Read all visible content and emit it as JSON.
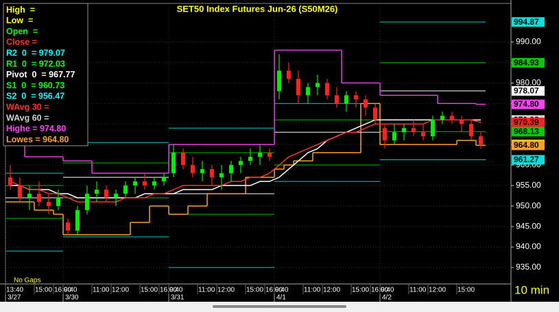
{
  "chart_data": {
    "type": "candlestick",
    "title": "SET50 Index Futures Jun-26 (S50M26)",
    "interval": "10 min",
    "note": "No Gaps",
    "ylim": [
      931,
      999.4
    ],
    "yticks": [
      {
        "value": 935,
        "label": "935.00"
      },
      {
        "value": 940,
        "label": "940.00"
      },
      {
        "value": 945,
        "label": "945.00"
      },
      {
        "value": 950,
        "label": "950.00"
      },
      {
        "value": 955,
        "label": "955.00"
      },
      {
        "value": 960,
        "label": "960.00"
      },
      {
        "value": 965,
        "label": "965.00"
      },
      {
        "value": 970,
        "label": "970.00"
      },
      {
        "value": 975,
        "label": "975.00"
      },
      {
        "value": 980,
        "label": "980.00"
      },
      {
        "value": 985,
        "label": "985.00"
      },
      {
        "value": 990,
        "label": "990.00"
      }
    ],
    "up_color": "#00ee00",
    "down_color": "#ff2020",
    "line_colors": {
      "wavg30": "#ff3030",
      "wavg60": "#ffffff",
      "highs": "#e040e0",
      "lows": "#ffa020"
    },
    "pivot_colors": [
      "#00d0d0",
      "#00c000",
      "#ffffff",
      "#00c000",
      "#00d0d0"
    ],
    "legend": [
      {
        "text": "High  =",
        "color": "#ffff00"
      },
      {
        "text": "Low  =",
        "color": "#ffff00"
      },
      {
        "text": "Open  =",
        "color": "#00ff00"
      },
      {
        "text": "Close =",
        "color": "#ff3030"
      },
      {
        "text": "R2  0  = 979.07",
        "color": "#00ffff"
      },
      {
        "text": "R1  0  = 972.03",
        "color": "#00ff00"
      },
      {
        "text": "Pivot  0  = 967.77",
        "color": "#ffffff"
      },
      {
        "text": "S1  0  = 960.73",
        "color": "#00ff00"
      },
      {
        "text": "S2  0  = 956.47",
        "color": "#00ffff"
      },
      {
        "text": "WAvg 30 =",
        "color": "#ff3030"
      },
      {
        "text": "WAvg 60 =",
        "color": "#d0d0d0"
      },
      {
        "text": "Highe = 974.80",
        "color": "#ff40ff"
      },
      {
        "text": "Lowes = 964.80",
        "color": "#ffa020"
      }
    ],
    "price_flags": [
      {
        "value": 994.87,
        "label": "994.87",
        "color": "#00e0e0"
      },
      {
        "value": 984.93,
        "label": "984.93",
        "color": "#00cc00"
      },
      {
        "value": 978.07,
        "label": "978.07",
        "color": "#ffffff"
      },
      {
        "value": 974.8,
        "label": "974.80",
        "color": "#ff40ff"
      },
      {
        "value": 970.98,
        "label": "970.98",
        "color": "#d8d8d8"
      },
      {
        "value": 970.39,
        "label": "970.39",
        "color": "#ff2020"
      },
      {
        "value": 968.13,
        "label": "968.13",
        "color": "#00cc00"
      },
      {
        "value": 965.0,
        "label": "965.00",
        "color": "#ffff00"
      },
      {
        "value": 964.8,
        "label": "964.80",
        "color": "#ffa020"
      },
      {
        "value": 961.27,
        "label": "961.27",
        "color": "#00e0e0"
      }
    ],
    "days": [
      {
        "date": "3/27",
        "times": [
          "13:40",
          null,
          null,
          "15:00",
          null,
          "16:00"
        ],
        "candles": [
          [
            957,
            960,
            954,
            955
          ],
          [
            955,
            957,
            951,
            952
          ],
          [
            952,
            955,
            949,
            953
          ],
          [
            953,
            956,
            950,
            951
          ],
          [
            951,
            953,
            948,
            950
          ],
          [
            950,
            954,
            949,
            952
          ]
        ],
        "wavg30": [
          956,
          955,
          954,
          954,
          953,
          953
        ],
        "wavg60": [
          955,
          955,
          954,
          954,
          954,
          953
        ],
        "highs": [
          966,
          966,
          962,
          962,
          962,
          962
        ],
        "lows": [
          951,
          951,
          951,
          949,
          949,
          948
        ],
        "pivots": [
          958,
          955,
          952,
          947,
          939
        ]
      },
      {
        "date": "3/30",
        "times": [
          "9:40",
          null,
          null,
          "11:00",
          null,
          "12:00",
          null,
          null,
          "15:00",
          null,
          "16:00"
        ],
        "candles": [
          [
            946,
            947,
            943,
            944
          ],
          [
            944,
            950,
            943,
            949
          ],
          [
            949,
            955,
            948,
            953
          ],
          [
            953,
            956,
            951,
            954
          ],
          [
            954,
            955,
            951,
            952
          ],
          [
            952,
            954,
            950,
            953
          ],
          [
            953,
            956,
            952,
            955
          ],
          [
            955,
            957,
            953,
            956
          ],
          [
            956,
            958,
            954,
            955
          ],
          [
            955,
            957,
            954,
            956
          ],
          [
            956,
            958,
            955,
            957
          ]
        ],
        "wavg30": [
          952,
          951,
          951,
          951,
          951,
          951,
          952,
          952,
          952,
          953,
          953
        ],
        "wavg60": [
          953,
          952,
          952,
          952,
          952,
          952,
          952,
          952,
          953,
          953,
          953
        ],
        "highs": [
          961,
          961,
          961,
          958,
          958,
          958,
          958,
          958,
          958,
          958,
          958
        ],
        "lows": [
          943,
          943,
          943,
          943,
          943,
          943,
          943,
          946,
          946,
          950,
          950
        ],
        "pivots": [
          965.5,
          960.5,
          957,
          952,
          942.5
        ]
      },
      {
        "date": "3/31",
        "times": [
          "9:40",
          null,
          null,
          "11:00",
          null,
          "12:00",
          null,
          null,
          "15:00",
          null,
          "16:00"
        ],
        "candles": [
          [
            958,
            965,
            957,
            963
          ],
          [
            963,
            964,
            959,
            960
          ],
          [
            960,
            962,
            957,
            958
          ],
          [
            958,
            961,
            956,
            959
          ],
          [
            959,
            960,
            955,
            957
          ],
          [
            957,
            960,
            954,
            958
          ],
          [
            958,
            961,
            956,
            960
          ],
          [
            960,
            962,
            958,
            961
          ],
          [
            961,
            964,
            960,
            962
          ],
          [
            962,
            965,
            960,
            963
          ],
          [
            963,
            964,
            961,
            962
          ]
        ],
        "wavg30": [
          954,
          955,
          955,
          955,
          955,
          955,
          956,
          956,
          957,
          957,
          958
        ],
        "wavg60": [
          953,
          954,
          954,
          954,
          954,
          955,
          955,
          955,
          955,
          956,
          956
        ],
        "highs": [
          965,
          965,
          965,
          965,
          965,
          965,
          965,
          965,
          965,
          965,
          965
        ],
        "lows": [
          948,
          948,
          950,
          950,
          953,
          953,
          953,
          953,
          957,
          957,
          957
        ],
        "pivots": [
          969,
          963,
          953,
          948,
          935
        ]
      },
      {
        "date": "4/1",
        "times": [
          "9:40",
          null,
          null,
          "11:00",
          null,
          "12:00",
          null,
          null,
          "15:00",
          null,
          "16:00"
        ],
        "candles": [
          [
            978,
            987,
            976,
            983
          ],
          [
            983,
            985,
            980,
            981
          ],
          [
            981,
            983,
            975,
            977
          ],
          [
            977,
            980,
            975,
            979
          ],
          [
            979,
            982,
            977,
            980
          ],
          [
            980,
            981,
            976,
            977
          ],
          [
            977,
            979,
            974,
            975
          ],
          [
            975,
            978,
            973,
            977
          ],
          [
            977,
            978,
            974,
            976
          ],
          [
            976,
            977,
            972,
            974
          ],
          [
            974,
            975,
            970,
            971
          ]
        ],
        "wavg30": [
          960,
          962,
          963,
          964,
          965,
          966,
          967,
          968,
          968,
          969,
          970
        ],
        "wavg60": [
          957,
          959,
          961,
          963,
          964,
          966,
          967,
          968,
          969,
          970,
          971
        ],
        "highs": [
          988,
          988,
          988,
          988,
          988,
          988,
          988,
          980,
          980,
          980,
          980
        ],
        "lows": [
          959,
          960,
          961,
          961,
          963,
          963,
          963,
          963,
          963,
          975,
          975
        ],
        "pivots": [
          975,
          971,
          968,
          960,
          956
        ]
      },
      {
        "date": "4/2",
        "times": [
          "9:40",
          null,
          null,
          "11:00",
          null,
          "12:00",
          null,
          null,
          "15:00",
          null,
          null
        ],
        "candles": [
          [
            969,
            970,
            964,
            966
          ],
          [
            966,
            970,
            965,
            968
          ],
          [
            968,
            970,
            966,
            969
          ],
          [
            969,
            971,
            967,
            968
          ],
          [
            968,
            970,
            966,
            967
          ],
          [
            967,
            972,
            966,
            971
          ],
          [
            971,
            973,
            970,
            972
          ],
          [
            972,
            973,
            970,
            971
          ],
          [
            971,
            972,
            968,
            970
          ],
          [
            970,
            971,
            966,
            967
          ],
          [
            967,
            968,
            964,
            965
          ]
        ],
        "wavg30": [
          970,
          970,
          970,
          970,
          970,
          971,
          971,
          971,
          971,
          971,
          970.39
        ],
        "wavg60": [
          971,
          971,
          971,
          971,
          971,
          971,
          971,
          971,
          971,
          971,
          970.98
        ],
        "highs": [
          977,
          977,
          977,
          977,
          977,
          977,
          975,
          975,
          975,
          975,
          974.8
        ],
        "lows": [
          965,
          965,
          965,
          965,
          965,
          965,
          965,
          965,
          966,
          966,
          964.8
        ],
        "pivots": [
          994.87,
          984.93,
          978.07,
          968.13,
          961.27
        ]
      }
    ]
  }
}
